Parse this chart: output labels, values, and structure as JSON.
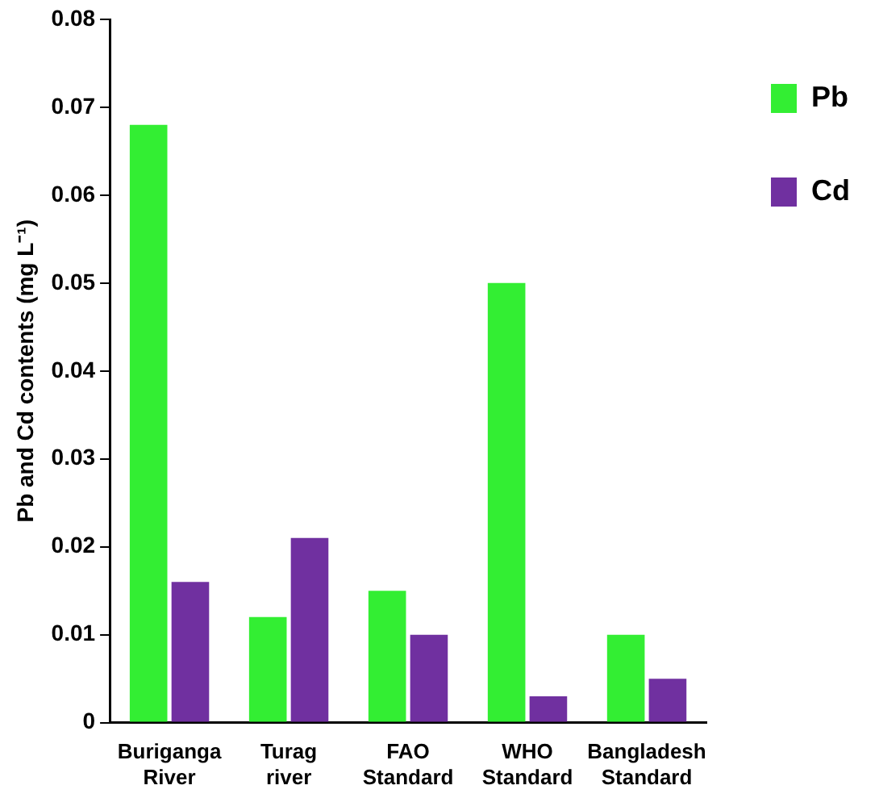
{
  "chart_data": {
    "type": "bar",
    "ylabel": "Pb and Cd contents (mg L⁻¹)",
    "categories": [
      "Buriganga River",
      "Turag river",
      "FAO Standard",
      "WHO Standard",
      "Bangladesh Standard"
    ],
    "series": [
      {
        "name": "Pb",
        "color": "#33ee33",
        "values": [
          0.068,
          0.012,
          0.015,
          0.05,
          0.01
        ]
      },
      {
        "name": "Cd",
        "color": "#7030a0",
        "values": [
          0.016,
          0.021,
          0.01,
          0.003,
          0.005
        ]
      }
    ],
    "ylim": [
      0,
      0.08
    ],
    "yticks": [
      0,
      0.01,
      0.02,
      0.03,
      0.04,
      0.05,
      0.06,
      0.07,
      0.08
    ],
    "grid": false,
    "legend": "top right"
  }
}
